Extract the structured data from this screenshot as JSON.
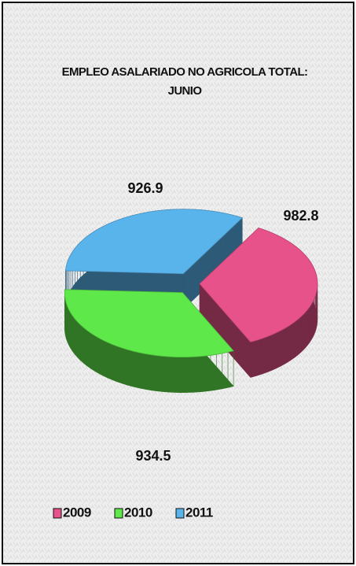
{
  "chart_data": {
    "type": "pie",
    "title": "EMPLEO  ASALARIADO NO AGRICOLA TOTAL: JUNIO",
    "categories": [
      "2009",
      "2010",
      "2011"
    ],
    "series": [
      {
        "values": [
          982.8,
          934.5,
          926.9
        ],
        "colors": [
          "#e8528a",
          "#5fe84a",
          "#5ab4ec"
        ]
      }
    ],
    "legend": "bottom-left"
  }
}
